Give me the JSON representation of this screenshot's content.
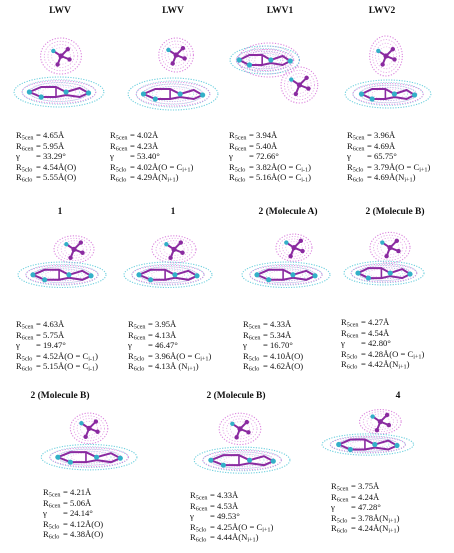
{
  "colors": {
    "ring_cloud_cyan": "#55c8d8",
    "cloud_magenta": "#d670d8",
    "bond_purple": "#8a2aa0",
    "atom_cyan": "#33b0c8"
  },
  "panels": [
    {
      "id": "p1",
      "title": "LWV",
      "params": [
        {
          "sym": "R",
          "sub": "5cen",
          "val": "= 4.65Å"
        },
        {
          "sym": "R",
          "sub": "6cen",
          "val": "= 5.95Å"
        },
        {
          "sym": "γ",
          "sub": "",
          "val": "= 33.29°"
        },
        {
          "sym": "R",
          "sub": "5clo",
          "val": "= 4.54Å(O)"
        },
        {
          "sym": "R",
          "sub": "6clo",
          "val": "= 5.55Å(O)"
        }
      ]
    },
    {
      "id": "p2",
      "title": "LWV",
      "params": [
        {
          "sym": "R",
          "sub": "5cen",
          "val": "= 4.02Å"
        },
        {
          "sym": "R",
          "sub": "6cen",
          "val": "= 4.23Å"
        },
        {
          "sym": "γ",
          "sub": "",
          "val": "= 53.40°"
        },
        {
          "sym": "R",
          "sub": "5clo",
          "val": "= 4.02Å(O = C",
          "tail_sub": "i+1",
          "tail": ")"
        },
        {
          "sym": "R",
          "sub": "6clo",
          "val": "= 4.29Å(N",
          "tail_sub": "i+1",
          "tail": ")"
        }
      ]
    },
    {
      "id": "p3",
      "title": "LWV1",
      "params": [
        {
          "sym": "R",
          "sub": "5cen",
          "val": "= 3.94Å"
        },
        {
          "sym": "R",
          "sub": "6cen",
          "val": "= 5.40Å"
        },
        {
          "sym": "γ",
          "sub": "",
          "val": "= 72.66°"
        },
        {
          "sym": "R",
          "sub": "5clo",
          "val": "= 3.82Å(O = C",
          "tail_sub": "i-1",
          "tail": ")"
        },
        {
          "sym": "R",
          "sub": "6clo",
          "val": "= 5.16Å(O = C",
          "tail_sub": "i-1",
          "tail": ")"
        }
      ]
    },
    {
      "id": "p4",
      "title": "LWV2",
      "params": [
        {
          "sym": "R",
          "sub": "5cen",
          "val": "= 3.96Å"
        },
        {
          "sym": "R",
          "sub": "6cen",
          "val": "= 4.69Å"
        },
        {
          "sym": "γ",
          "sub": "",
          "val": "= 65.75°"
        },
        {
          "sym": "R",
          "sub": "5clo",
          "val": "= 3.79Å(O = C",
          "tail_sub": "i+1",
          "tail": ")"
        },
        {
          "sym": "R",
          "sub": "6clo",
          "val": "= 4.69Å(N",
          "tail_sub": "i+1",
          "tail": ")"
        }
      ]
    },
    {
      "id": "p5",
      "title": "1",
      "params": [
        {
          "sym": "R",
          "sub": "5cen",
          "val": "= 4.63Å"
        },
        {
          "sym": "R",
          "sub": "6cen",
          "val": "= 5.75Å"
        },
        {
          "sym": "γ",
          "sub": "",
          "val": "= 19.47°"
        },
        {
          "sym": "R",
          "sub": "5clo",
          "val": "= 4.52Å(O = C",
          "tail_sub": "i-1",
          "tail": ")"
        },
        {
          "sym": "R",
          "sub": "6clo",
          "val": "= 5.15Å(O = C",
          "tail_sub": "i-1",
          "tail": ")"
        }
      ]
    },
    {
      "id": "p6",
      "title": "1",
      "params": [
        {
          "sym": "R",
          "sub": "5cen",
          "val": "= 3.95Å"
        },
        {
          "sym": "R",
          "sub": "6cen",
          "val": "= 4.13Å"
        },
        {
          "sym": "γ",
          "sub": "",
          "val": "= 46.47°"
        },
        {
          "sym": "R",
          "sub": "5clo",
          "val": "= 3.96Å(O = C",
          "tail_sub": "i+1",
          "tail": ")"
        },
        {
          "sym": "R",
          "sub": "6clo",
          "val": "= 4.13Å (N",
          "tail_sub": "i+1",
          "tail": ")"
        }
      ]
    },
    {
      "id": "p7",
      "title": "2 (Molecule A)",
      "params": [
        {
          "sym": "R",
          "sub": "5cen",
          "val": "= 4.33Å"
        },
        {
          "sym": "R",
          "sub": "6cen",
          "val": "= 5.34Å"
        },
        {
          "sym": "γ",
          "sub": "",
          "val": "= 16.70°"
        },
        {
          "sym": "R",
          "sub": "5clo",
          "val": "= 4.10Å(O)"
        },
        {
          "sym": "R",
          "sub": "6clo",
          "val": "= 4.62Å(O)"
        }
      ]
    },
    {
      "id": "p8",
      "title": "2 (Molecule B)",
      "params": [
        {
          "sym": "R",
          "sub": "5cen",
          "val": "= 4.27Å"
        },
        {
          "sym": "R",
          "sub": "6cen",
          "val": "= 4.54Å"
        },
        {
          "sym": "γ",
          "sub": "",
          "val": "= 42.80°"
        },
        {
          "sym": "R",
          "sub": "5clo",
          "val": "= 4.28Å(O = C",
          "tail_sub": "i+1",
          "tail": ")"
        },
        {
          "sym": "R",
          "sub": "6clo",
          "val": "= 4.42Å(N",
          "tail_sub": "i+1",
          "tail": ")"
        }
      ]
    },
    {
      "id": "p9",
      "title": "2 (Molecule B)",
      "params": [
        {
          "sym": "R",
          "sub": "5cen",
          "val": "= 4.21Å"
        },
        {
          "sym": "R",
          "sub": "6cen",
          "val": "= 5.06Å"
        },
        {
          "sym": "γ",
          "sub": "",
          "val": "= 24.14°"
        },
        {
          "sym": "R",
          "sub": "5clo",
          "val": "= 4.12Å(O)"
        },
        {
          "sym": "R",
          "sub": "6clo",
          "val": "= 4.38Å(O)"
        }
      ]
    },
    {
      "id": "p10",
      "title": "2 (Molecule B)",
      "params": [
        {
          "sym": "R",
          "sub": "5cen",
          "val": "= 4.33Å"
        },
        {
          "sym": "R",
          "sub": "6cen",
          "val": "= 4.53Å"
        },
        {
          "sym": "γ",
          "sub": "",
          "val": "= 49.53°"
        },
        {
          "sym": "R",
          "sub": "5clo",
          "val": "= 4.25Å(O = C",
          "tail_sub": "i+1",
          "tail": ")"
        },
        {
          "sym": "R",
          "sub": "6clo",
          "val": "= 4.44Å(N",
          "tail_sub": "i+1",
          "tail": ")"
        }
      ]
    },
    {
      "id": "p11",
      "title": "4",
      "params": [
        {
          "sym": "R",
          "sub": "5cen",
          "val": "= 3.75Å"
        },
        {
          "sym": "R",
          "sub": "6cen",
          "val": "= 4.24Å"
        },
        {
          "sym": "γ",
          "sub": "",
          "val": "= 47.28°"
        },
        {
          "sym": "R",
          "sub": "5clo",
          "val": "= 3.78Å(N",
          "tail_sub": "i+1",
          "tail": ")"
        },
        {
          "sym": "R",
          "sub": "6clo",
          "val": "= 4.24Å(N",
          "tail_sub": "i+1",
          "tail": ")"
        }
      ]
    }
  ]
}
